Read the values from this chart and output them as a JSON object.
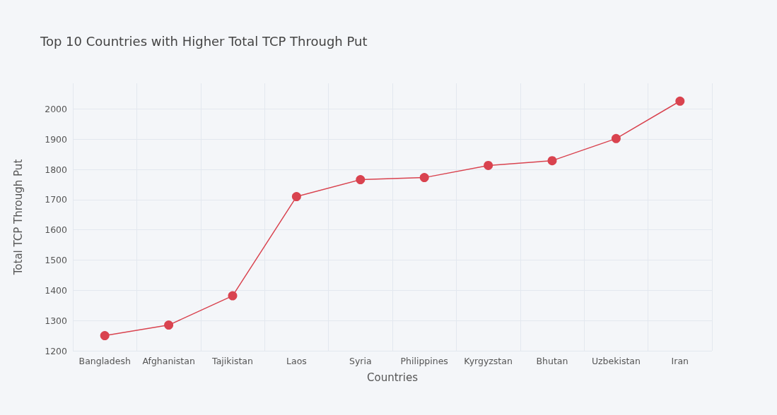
{
  "chart_data": {
    "type": "line",
    "title": "Top 10 Countries with Higher Total TCP Through Put",
    "xlabel": "Countries",
    "ylabel": "Total TCP Through Put",
    "categories": [
      "Bangladesh",
      "Afghanistan",
      "Tajikistan",
      "Laos",
      "Syria",
      "Philippines",
      "Kyrgyzstan",
      "Bhutan",
      "Uzbekistan",
      "Iran"
    ],
    "series": [
      {
        "color": "#d9434f",
        "values": [
          1250,
          1285,
          1382,
          1710,
          1766,
          1773,
          1813,
          1829,
          1902,
          2026
        ]
      }
    ],
    "ylim": [
      1200,
      2085
    ],
    "yticks": [
      1200,
      1300,
      1400,
      1500,
      1600,
      1700,
      1800,
      1900,
      2000
    ],
    "grid": true,
    "marker": "circle",
    "line_style": "solid"
  }
}
